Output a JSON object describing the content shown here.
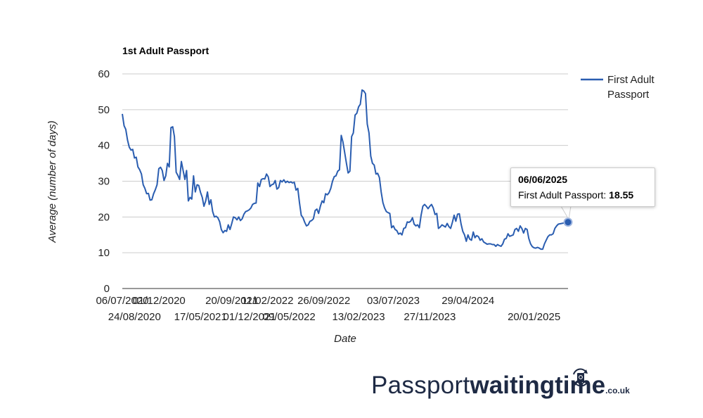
{
  "chart_data": {
    "type": "line",
    "title": "1st Adult Passport",
    "xlabel": "Date",
    "ylabel": "Average (number of days)",
    "ylim": [
      0,
      60
    ],
    "yticks": [
      0,
      10,
      20,
      30,
      40,
      50,
      60
    ],
    "xlim": [
      "06/07/2020",
      "06/06/2025"
    ],
    "xticks": [
      "06/07/2020",
      "24/08/2020",
      "01/12/2020",
      "17/05/2021",
      "20/09/2021",
      "01/12/2021",
      "11/02/2022",
      "09/05/2022",
      "26/09/2022",
      "13/02/2023",
      "03/07/2023",
      "27/11/2023",
      "29/04/2024",
      "20/01/2025"
    ],
    "grid": true,
    "legend_position": "right",
    "series": [
      {
        "name": "First Adult Passport",
        "color": "#2a5db0",
        "points": [
          [
            "06/07/2020",
            48.8
          ],
          [
            "13/07/2020",
            45.5
          ],
          [
            "20/07/2020",
            44.5
          ],
          [
            "27/07/2020",
            41.5
          ],
          [
            "03/08/2020",
            39.5
          ],
          [
            "10/08/2020",
            38.7
          ],
          [
            "17/08/2020",
            38.9
          ],
          [
            "24/08/2020",
            36.5
          ],
          [
            "31/08/2020",
            36.7
          ],
          [
            "07/09/2020",
            34.0
          ],
          [
            "14/09/2020",
            33.2
          ],
          [
            "21/09/2020",
            32.0
          ],
          [
            "28/09/2020",
            29.0
          ],
          [
            "05/10/2020",
            28.0
          ],
          [
            "12/10/2020",
            26.5
          ],
          [
            "19/10/2020",
            26.6
          ],
          [
            "26/10/2020",
            24.7
          ],
          [
            "02/11/2020",
            24.8
          ],
          [
            "09/11/2020",
            26.5
          ],
          [
            "16/11/2020",
            27.6
          ],
          [
            "23/11/2020",
            29.0
          ],
          [
            "30/11/2020",
            33.5
          ],
          [
            "07/12/2020",
            33.9
          ],
          [
            "14/12/2020",
            33.0
          ],
          [
            "21/12/2020",
            30.2
          ],
          [
            "28/12/2020",
            31.5
          ],
          [
            "04/01/2021",
            35.0
          ],
          [
            "11/01/2021",
            34.0
          ],
          [
            "18/01/2021",
            45.0
          ],
          [
            "25/01/2021",
            45.2
          ],
          [
            "01/02/2021",
            42.5
          ],
          [
            "08/02/2021",
            32.5
          ],
          [
            "15/02/2021",
            31.6
          ],
          [
            "22/02/2021",
            30.5
          ],
          [
            "01/03/2021",
            35.5
          ],
          [
            "08/03/2021",
            33.0
          ],
          [
            "15/03/2021",
            30.5
          ],
          [
            "22/03/2021",
            33.0
          ],
          [
            "29/03/2021",
            24.5
          ],
          [
            "05/04/2021",
            25.5
          ],
          [
            "12/04/2021",
            25.0
          ],
          [
            "19/04/2021",
            31.5
          ],
          [
            "26/04/2021",
            27.0
          ],
          [
            "03/05/2021",
            29.0
          ],
          [
            "10/05/2021",
            28.8
          ],
          [
            "17/05/2021",
            26.9
          ],
          [
            "24/05/2021",
            25.5
          ],
          [
            "31/05/2021",
            23.0
          ],
          [
            "07/06/2021",
            24.5
          ],
          [
            "14/06/2021",
            27.0
          ],
          [
            "21/06/2021",
            23.5
          ],
          [
            "28/06/2021",
            24.8
          ],
          [
            "05/07/2021",
            21.5
          ],
          [
            "12/07/2021",
            20.0
          ],
          [
            "19/07/2021",
            20.2
          ],
          [
            "26/07/2021",
            19.8
          ],
          [
            "02/08/2021",
            18.7
          ],
          [
            "09/08/2021",
            16.5
          ],
          [
            "16/08/2021",
            15.6
          ],
          [
            "23/08/2021",
            16.2
          ],
          [
            "30/08/2021",
            16.0
          ],
          [
            "06/09/2021",
            17.8
          ],
          [
            "13/09/2021",
            16.5
          ],
          [
            "20/09/2021",
            18.2
          ],
          [
            "27/09/2021",
            20.0
          ],
          [
            "04/10/2021",
            19.8
          ],
          [
            "11/10/2021",
            19.2
          ],
          [
            "18/10/2021",
            20.0
          ],
          [
            "25/10/2021",
            19.0
          ],
          [
            "01/11/2021",
            19.5
          ],
          [
            "08/11/2021",
            20.8
          ],
          [
            "15/11/2021",
            21.5
          ],
          [
            "22/11/2021",
            21.7
          ],
          [
            "29/11/2021",
            22.0
          ],
          [
            "06/12/2021",
            22.5
          ],
          [
            "13/12/2021",
            23.5
          ],
          [
            "20/12/2021",
            23.8
          ],
          [
            "27/12/2021",
            23.9
          ],
          [
            "03/01/2022",
            29.5
          ],
          [
            "10/01/2022",
            28.5
          ],
          [
            "17/01/2022",
            30.5
          ],
          [
            "24/01/2022",
            30.7
          ],
          [
            "31/01/2022",
            30.6
          ],
          [
            "07/02/2022",
            32.0
          ],
          [
            "14/02/2022",
            31.2
          ],
          [
            "21/02/2022",
            28.5
          ],
          [
            "28/02/2022",
            29.0
          ],
          [
            "07/03/2022",
            29.2
          ],
          [
            "14/03/2022",
            30.2
          ],
          [
            "21/03/2022",
            27.8
          ],
          [
            "28/03/2022",
            28.2
          ],
          [
            "04/04/2022",
            30.2
          ],
          [
            "11/04/2022",
            29.8
          ],
          [
            "18/04/2022",
            30.4
          ],
          [
            "25/04/2022",
            29.6
          ],
          [
            "02/05/2022",
            30.0
          ],
          [
            "09/05/2022",
            29.6
          ],
          [
            "16/05/2022",
            29.8
          ],
          [
            "23/05/2022",
            29.5
          ],
          [
            "30/05/2022",
            29.7
          ],
          [
            "06/06/2022",
            27.5
          ],
          [
            "13/06/2022",
            28.0
          ],
          [
            "20/06/2022",
            24.0
          ],
          [
            "27/06/2022",
            20.5
          ],
          [
            "04/07/2022",
            19.8
          ],
          [
            "11/07/2022",
            18.5
          ],
          [
            "18/07/2022",
            17.5
          ],
          [
            "25/07/2022",
            17.8
          ],
          [
            "01/08/2022",
            18.8
          ],
          [
            "08/08/2022",
            19.0
          ],
          [
            "15/08/2022",
            19.5
          ],
          [
            "22/08/2022",
            21.8
          ],
          [
            "29/08/2022",
            22.2
          ],
          [
            "05/09/2022",
            21.0
          ],
          [
            "12/09/2022",
            23.0
          ],
          [
            "19/09/2022",
            24.5
          ],
          [
            "26/09/2022",
            24.0
          ],
          [
            "03/10/2022",
            26.5
          ],
          [
            "10/10/2022",
            26.2
          ],
          [
            "17/10/2022",
            26.8
          ],
          [
            "24/10/2022",
            28.0
          ],
          [
            "31/10/2022",
            30.0
          ],
          [
            "07/11/2022",
            31.3
          ],
          [
            "14/11/2022",
            31.5
          ],
          [
            "21/11/2022",
            32.8
          ],
          [
            "28/11/2022",
            33.2
          ],
          [
            "05/12/2022",
            42.8
          ],
          [
            "12/12/2022",
            41.0
          ],
          [
            "19/12/2022",
            38.0
          ],
          [
            "26/12/2022",
            35.0
          ],
          [
            "02/01/2023",
            32.3
          ],
          [
            "09/01/2023",
            32.8
          ],
          [
            "16/01/2023",
            42.5
          ],
          [
            "23/01/2023",
            43.5
          ],
          [
            "30/01/2023",
            48.5
          ],
          [
            "06/02/2023",
            49.0
          ],
          [
            "13/02/2023",
            50.8
          ],
          [
            "20/02/2023",
            51.5
          ],
          [
            "27/02/2023",
            55.5
          ],
          [
            "06/03/2023",
            55.2
          ],
          [
            "13/03/2023",
            54.5
          ],
          [
            "20/03/2023",
            46.0
          ],
          [
            "27/03/2023",
            43.5
          ],
          [
            "03/04/2023",
            37.0
          ],
          [
            "10/04/2023",
            35.0
          ],
          [
            "17/04/2023",
            34.5
          ],
          [
            "24/04/2023",
            32.0
          ],
          [
            "01/05/2023",
            32.2
          ],
          [
            "08/05/2023",
            31.0
          ],
          [
            "15/05/2023",
            27.0
          ],
          [
            "22/05/2023",
            24.0
          ],
          [
            "29/05/2023",
            22.5
          ],
          [
            "05/06/2023",
            21.5
          ],
          [
            "12/06/2023",
            21.2
          ],
          [
            "19/06/2023",
            21.0
          ],
          [
            "26/06/2023",
            17.0
          ],
          [
            "03/07/2023",
            17.5
          ],
          [
            "10/07/2023",
            16.5
          ],
          [
            "17/07/2023",
            16.2
          ],
          [
            "24/07/2023",
            15.2
          ],
          [
            "31/07/2023",
            15.5
          ],
          [
            "07/08/2023",
            15.0
          ],
          [
            "14/08/2023",
            16.8
          ],
          [
            "21/08/2023",
            17.0
          ],
          [
            "28/08/2023",
            18.6
          ],
          [
            "04/09/2023",
            18.5
          ],
          [
            "11/09/2023",
            18.8
          ],
          [
            "18/09/2023",
            19.8
          ],
          [
            "25/09/2023",
            18.0
          ],
          [
            "02/10/2023",
            17.5
          ],
          [
            "09/10/2023",
            17.8
          ],
          [
            "16/10/2023",
            17.0
          ],
          [
            "23/10/2023",
            20.5
          ],
          [
            "30/10/2023",
            23.0
          ],
          [
            "06/11/2023",
            23.5
          ],
          [
            "13/11/2023",
            23.0
          ],
          [
            "20/11/2023",
            22.3
          ],
          [
            "27/11/2023",
            23.0
          ],
          [
            "04/12/2023",
            23.5
          ],
          [
            "11/12/2023",
            22.5
          ],
          [
            "18/12/2023",
            20.7
          ],
          [
            "25/12/2023",
            21.0
          ],
          [
            "01/01/2024",
            16.8
          ],
          [
            "08/01/2024",
            17.2
          ],
          [
            "15/01/2024",
            17.8
          ],
          [
            "22/01/2024",
            17.5
          ],
          [
            "29/01/2024",
            17.2
          ],
          [
            "05/02/2024",
            18.2
          ],
          [
            "12/02/2024",
            17.3
          ],
          [
            "19/02/2024",
            16.8
          ],
          [
            "26/02/2024",
            18.5
          ],
          [
            "04/03/2024",
            20.5
          ],
          [
            "11/03/2024",
            18.8
          ],
          [
            "18/03/2024",
            20.8
          ],
          [
            "25/03/2024",
            20.9
          ],
          [
            "01/04/2024",
            18.0
          ],
          [
            "08/04/2024",
            16.0
          ],
          [
            "15/04/2024",
            15.0
          ],
          [
            "22/04/2024",
            13.2
          ],
          [
            "29/04/2024",
            15.0
          ],
          [
            "06/05/2024",
            13.8
          ],
          [
            "13/05/2024",
            13.5
          ],
          [
            "20/05/2024",
            15.8
          ],
          [
            "27/05/2024",
            14.2
          ],
          [
            "03/06/2024",
            14.8
          ],
          [
            "10/06/2024",
            14.5
          ],
          [
            "17/06/2024",
            13.5
          ],
          [
            "24/06/2024",
            13.9
          ],
          [
            "01/07/2024",
            13.0
          ],
          [
            "08/07/2024",
            12.7
          ],
          [
            "15/07/2024",
            12.4
          ],
          [
            "22/07/2024",
            12.5
          ],
          [
            "29/07/2024",
            12.5
          ],
          [
            "05/08/2024",
            12.3
          ],
          [
            "12/08/2024",
            12.3
          ],
          [
            "19/08/2024",
            11.8
          ],
          [
            "26/08/2024",
            12.3
          ],
          [
            "02/09/2024",
            12.0
          ],
          [
            "09/09/2024",
            11.8
          ],
          [
            "16/09/2024",
            12.5
          ],
          [
            "23/09/2024",
            13.8
          ],
          [
            "30/09/2024",
            14.0
          ],
          [
            "07/10/2024",
            15.3
          ],
          [
            "14/10/2024",
            14.6
          ],
          [
            "21/10/2024",
            14.8
          ],
          [
            "28/10/2024",
            15.0
          ],
          [
            "04/11/2024",
            16.5
          ],
          [
            "11/11/2024",
            16.8
          ],
          [
            "18/11/2024",
            16.0
          ],
          [
            "25/11/2024",
            17.5
          ],
          [
            "02/12/2024",
            16.8
          ],
          [
            "09/12/2024",
            15.5
          ],
          [
            "16/12/2024",
            16.8
          ],
          [
            "23/12/2024",
            16.5
          ],
          [
            "30/12/2024",
            14.0
          ],
          [
            "06/01/2025",
            12.5
          ],
          [
            "13/01/2025",
            11.7
          ],
          [
            "20/01/2025",
            11.4
          ],
          [
            "27/01/2025",
            11.3
          ],
          [
            "03/02/2025",
            11.5
          ],
          [
            "10/02/2025",
            11.3
          ],
          [
            "17/02/2025",
            11.0
          ],
          [
            "24/02/2025",
            11.0
          ],
          [
            "03/03/2025",
            12.5
          ],
          [
            "10/03/2025",
            13.5
          ],
          [
            "17/03/2025",
            14.5
          ],
          [
            "24/03/2025",
            15.0
          ],
          [
            "31/03/2025",
            15.0
          ],
          [
            "07/04/2025",
            15.3
          ],
          [
            "14/04/2025",
            16.8
          ],
          [
            "21/04/2025",
            17.5
          ],
          [
            "28/04/2025",
            18.0
          ],
          [
            "06/06/2025",
            18.55
          ]
        ]
      }
    ]
  },
  "tooltip": {
    "date": "06/06/2025",
    "label": "First Adult Passport:",
    "value": "18.55",
    "x": "06/06/2025",
    "y": 18.55
  },
  "branding": {
    "part_light": "Passport",
    "part_bold": "waitingtime",
    "tld": ".co.uk",
    "icon": "passport-refresh-icon"
  }
}
